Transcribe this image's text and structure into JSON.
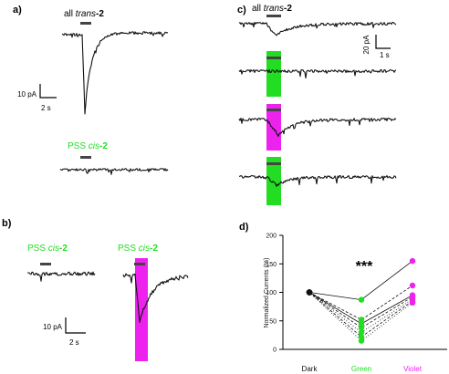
{
  "panels": {
    "a": {
      "label": "a)",
      "top_stim_prefix": "all ",
      "top_stim_italic": "trans",
      "top_stim_suffix": "-2",
      "bottom_stim_prefix": "PSS ",
      "bottom_stim_italic": "cis",
      "bottom_stim_suffix": "-2",
      "scale_y": "10 pA",
      "scale_x": "2 s"
    },
    "b": {
      "label": "b)",
      "left_stim_prefix": "PSS ",
      "left_stim_italic": "cis",
      "left_stim_suffix": "-2",
      "right_stim_prefix": "PSS ",
      "right_stim_italic": "cis",
      "right_stim_suffix": "-2",
      "scale_y": "10 pA",
      "scale_x": "2 s"
    },
    "c": {
      "label": "c)",
      "stim_prefix": "all ",
      "stim_italic": "trans",
      "stim_suffix": "-2",
      "scale_y": "20 pA",
      "scale_x": "1 s"
    },
    "d": {
      "label": "d)",
      "significance": "***"
    }
  },
  "colors": {
    "trace": "#111111",
    "bar": "#444444",
    "green": "#22dd22",
    "violet": "#ee22ee",
    "black": "#111111"
  },
  "chart_data": {
    "type": "scatter",
    "ylabel": "Normalized Currents (%)",
    "xlabel": "",
    "categories": [
      "Dark",
      "Green",
      "Violet"
    ],
    "ylim": [
      0,
      200
    ],
    "yticks": [
      0,
      50,
      100,
      150,
      200
    ],
    "category_colors": [
      "#111111",
      "#22dd22",
      "#ee22ee"
    ],
    "series": [
      {
        "values": [
          100,
          87,
          155
        ],
        "line": "solid"
      },
      {
        "values": [
          100,
          52,
          112
        ],
        "line": "dashed"
      },
      {
        "values": [
          100,
          45,
          95
        ],
        "line": "solid"
      },
      {
        "values": [
          100,
          38,
          92
        ],
        "line": "dashed"
      },
      {
        "values": [
          100,
          30,
          88
        ],
        "line": "dotted"
      },
      {
        "values": [
          100,
          22,
          85
        ],
        "line": "dashed"
      },
      {
        "values": [
          100,
          15,
          82
        ],
        "line": "dotted"
      }
    ]
  }
}
